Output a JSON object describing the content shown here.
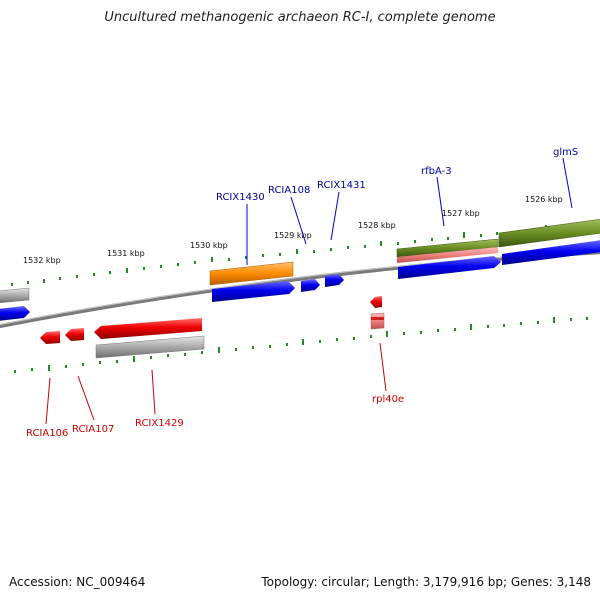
{
  "header": {
    "title": "Uncultured methanogenic archaeon RC-I, complete genome"
  },
  "footer": {
    "accession": "Accession: NC_009464",
    "topology": "Topology: circular; Length: 3,179,916 bp; Genes: 3,148"
  },
  "colors": {
    "blue": "#0000ee",
    "red": "#ee0000",
    "orange": "#ff8c00",
    "olive": "#6b8e23",
    "pink": "#f08080",
    "gray": "#a9a9a9",
    "tick": "#228b22",
    "label_forward": "#000099",
    "label_reverse": "#cc0000"
  },
  "scale_labels": [
    "1532 kbp",
    "1531 kbp",
    "1530 kbp",
    "1529 kbp",
    "1528 kbp",
    "1527 kbp",
    "1526 kbp"
  ],
  "forward_labels": [
    "RCIX1430",
    "RCIA108",
    "RCIX1431",
    "rfbA-3",
    "glmS"
  ],
  "reverse_labels": [
    "RCIA106",
    "RCIA107",
    "RCIX1429",
    "rpl40e"
  ]
}
